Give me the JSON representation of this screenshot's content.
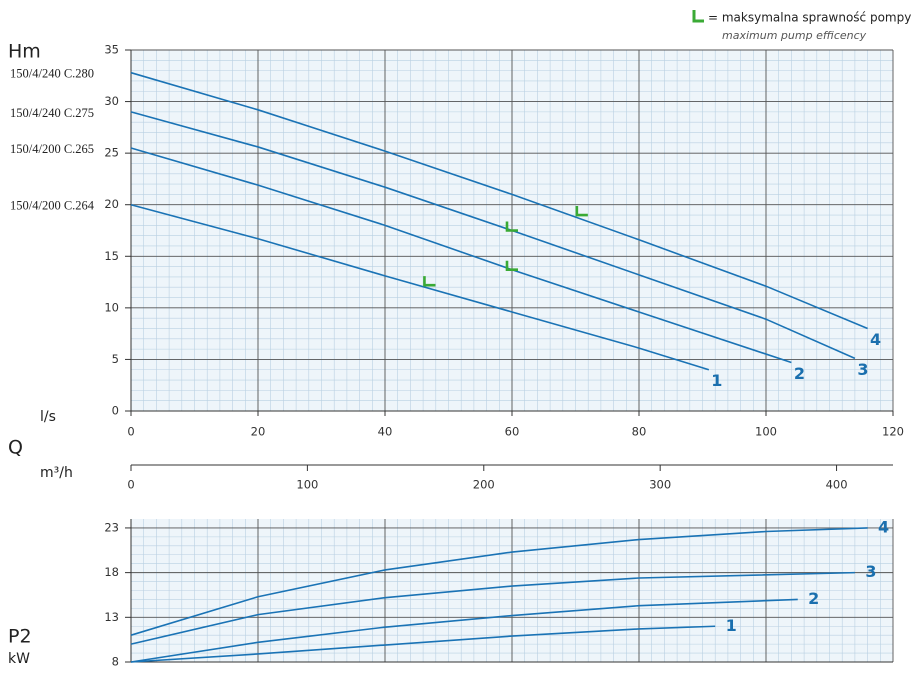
{
  "legend": {
    "symbol_label": "= maksymalna sprawność pompy",
    "note": "maximum pump efficency"
  },
  "chart_data": [
    {
      "type": "line",
      "y_label": "Hm",
      "x_label": "l/s",
      "xlim": [
        0,
        120
      ],
      "xticks": [
        0,
        20,
        40,
        60,
        80,
        100,
        120
      ],
      "ylim": [
        0,
        35
      ],
      "yticks": [
        0,
        5,
        10,
        15,
        20,
        25,
        30,
        35
      ],
      "grid": true,
      "series": [
        {
          "name": "1",
          "model": "150/4/200 C.264",
          "color": "#1a73b5",
          "x": [
            0,
            20,
            40,
            60,
            80,
            91
          ],
          "values": [
            20,
            16.7,
            13.1,
            9.6,
            6.1,
            4.0
          ]
        },
        {
          "name": "2",
          "model": "150/4/200 C.265",
          "color": "#1a73b5",
          "x": [
            0,
            20,
            40,
            60,
            80,
            104
          ],
          "values": [
            25.5,
            21.9,
            18.0,
            13.7,
            9.6,
            4.7
          ]
        },
        {
          "name": "3",
          "model": "150/4/240 C.275",
          "color": "#1a73b5",
          "x": [
            0,
            20,
            40,
            60,
            80,
            100,
            114
          ],
          "values": [
            29,
            25.6,
            21.7,
            17.5,
            13.2,
            8.9,
            5.1
          ]
        },
        {
          "name": "4",
          "model": "150/4/240 C.280",
          "color": "#1a73b5",
          "x": [
            0,
            20,
            40,
            60,
            80,
            100,
            116
          ],
          "values": [
            32.8,
            29.2,
            25.2,
            21.0,
            16.6,
            12.1,
            8.0
          ]
        }
      ],
      "efficiency": {
        "color": "#3aaa35",
        "x": [
          47,
          60,
          60,
          71
        ],
        "y": [
          12.2,
          13.7,
          17.5,
          19.0
        ]
      }
    },
    {
      "type": "axis",
      "label": "Q",
      "unit": "m³/h",
      "xlim": [
        0,
        432
      ],
      "xticks": [
        0,
        100,
        200,
        300,
        400
      ]
    },
    {
      "type": "line",
      "y_label": "P2",
      "y_unit": "kW",
      "xlim": [
        0,
        120
      ],
      "xticks": [
        0,
        20,
        40,
        60,
        80,
        100,
        120
      ],
      "ylim": [
        8,
        24
      ],
      "yticks": [
        8,
        13,
        18,
        23
      ],
      "grid": true,
      "series": [
        {
          "name": "1",
          "color": "#1a73b5",
          "x": [
            0,
            20,
            40,
            60,
            80,
            92
          ],
          "values": [
            8,
            8.9,
            9.9,
            10.9,
            11.7,
            12.0
          ]
        },
        {
          "name": "2",
          "color": "#1a73b5",
          "x": [
            0,
            20,
            40,
            60,
            80,
            105
          ],
          "values": [
            8,
            10.2,
            11.9,
            13.2,
            14.3,
            15.0
          ]
        },
        {
          "name": "3",
          "color": "#1a73b5",
          "x": [
            0,
            20,
            40,
            60,
            80,
            114
          ],
          "values": [
            10,
            13.3,
            15.2,
            16.5,
            17.4,
            18.0
          ]
        },
        {
          "name": "4",
          "color": "#1a73b5",
          "x": [
            0,
            20,
            40,
            60,
            80,
            100,
            116
          ],
          "values": [
            11,
            15.3,
            18.3,
            20.3,
            21.7,
            22.6,
            23.0
          ]
        }
      ]
    }
  ]
}
